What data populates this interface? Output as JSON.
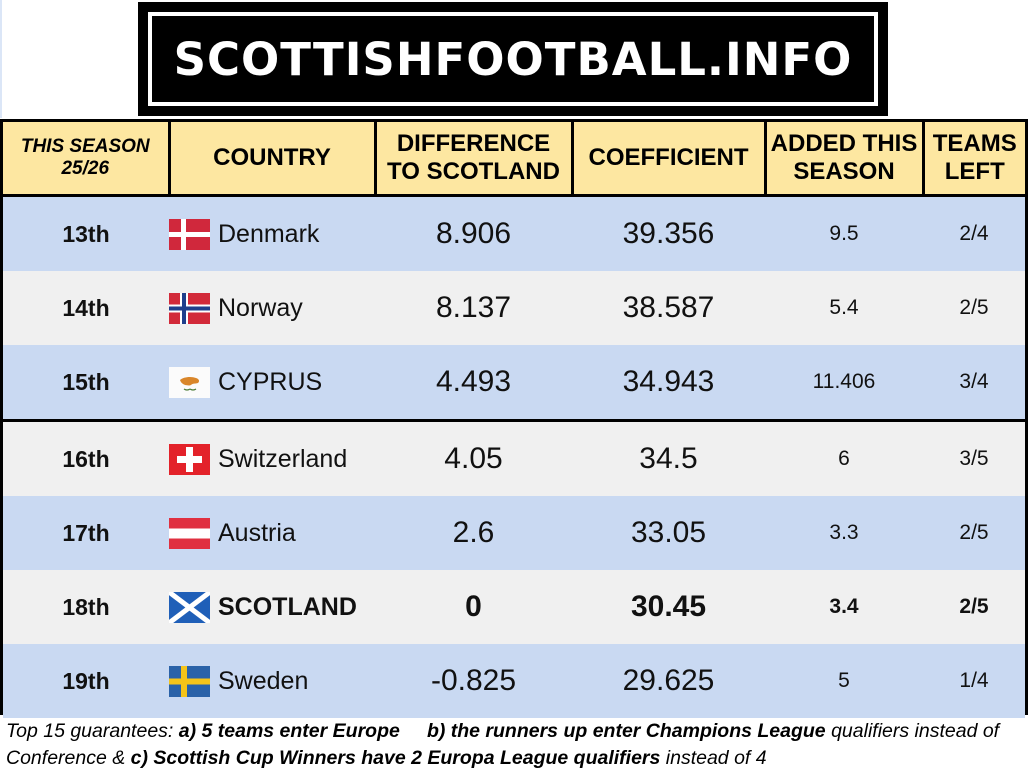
{
  "logo": {
    "text": "SCOTTISHFOOTBALL.INFO"
  },
  "table": {
    "headers": {
      "season_line1": "THIS SEASON",
      "season_line2": "25/26",
      "country": "COUNTRY",
      "diff_line1": "DIFFERENCE",
      "diff_line2": "TO SCOTLAND",
      "coefficient": "COEFFICIENT",
      "added_line1": "ADDED THIS",
      "added_line2": "SEASON",
      "teams_line1": "TEAMS",
      "teams_line2": "LEFT"
    },
    "rows": [
      {
        "rank": "13th",
        "country": "Denmark",
        "diff": "8.906",
        "coef": "39.356",
        "added": "9.5",
        "left": "2/4"
      },
      {
        "rank": "14th",
        "country": "Norway",
        "diff": "8.137",
        "coef": "38.587",
        "added": "5.4",
        "left": "2/5"
      },
      {
        "rank": "15th",
        "country": "CYPRUS",
        "diff": "4.493",
        "coef": "34.943",
        "added": "11.406",
        "left": "3/4"
      },
      {
        "rank": "16th",
        "country": "Switzerland",
        "diff": "4.05",
        "coef": "34.5",
        "added": "6",
        "left": "3/5"
      },
      {
        "rank": "17th",
        "country": "Austria",
        "diff": "2.6",
        "coef": "33.05",
        "added": "3.3",
        "left": "2/5"
      },
      {
        "rank": "18th",
        "country": "SCOTLAND",
        "diff": "0",
        "coef": "30.45",
        "added": "3.4",
        "left": "2/5"
      },
      {
        "rank": "19th",
        "country": "Sweden",
        "diff": "-0.825",
        "coef": "29.625",
        "added": "5",
        "left": "1/4"
      }
    ]
  },
  "footnote": {
    "intro": "Top 15 guarantees: ",
    "a": "a) 5 teams enter Europe",
    "b": "b) the runners up enter Champions League",
    "b_rest": " qualifiers instead of Conference & ",
    "c": "c) Scottish Cup Winners have 2 Europa League qualifiers",
    "c_rest": " instead of 4"
  },
  "colors": {
    "header_bg": "#fde7a1",
    "row_blue": "#c9d9f2",
    "row_gray": "#f0f0f0"
  }
}
